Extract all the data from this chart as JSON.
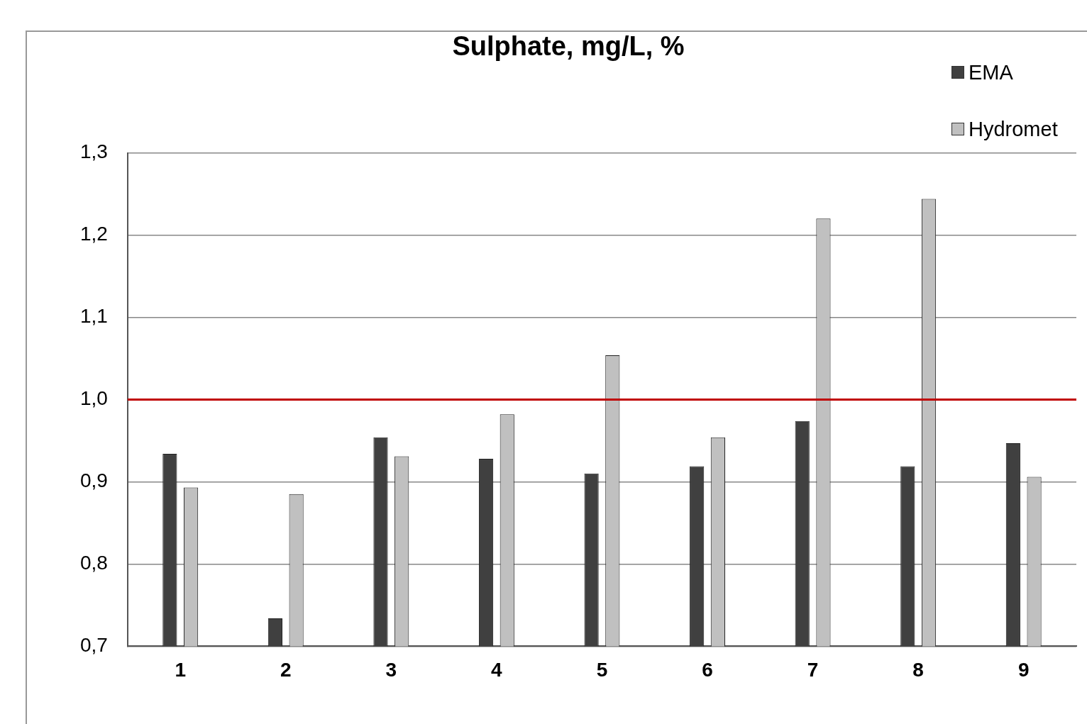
{
  "chart_data": {
    "type": "bar",
    "title": "Sulphate, mg/L, %",
    "categories": [
      "1",
      "2",
      "3",
      "4",
      "5",
      "6",
      "7",
      "8",
      "9"
    ],
    "series": [
      {
        "name": "EMA",
        "color": "#404040",
        "values": [
          0.934,
          0.734,
          0.954,
          0.928,
          0.91,
          0.919,
          0.974,
          0.919,
          0.947
        ]
      },
      {
        "name": "Hydromet",
        "color": "#c0c0c0",
        "values": [
          0.893,
          0.885,
          0.931,
          0.982,
          1.054,
          0.954,
          1.22,
          1.244,
          0.906
        ]
      }
    ],
    "ylim": [
      0.7,
      1.3
    ],
    "yticks": [
      {
        "value": 0.7,
        "label": "0,7"
      },
      {
        "value": 0.8,
        "label": "0,8"
      },
      {
        "value": 0.9,
        "label": "0,9"
      },
      {
        "value": 1.0,
        "label": "1,0"
      },
      {
        "value": 1.1,
        "label": "1,1"
      },
      {
        "value": 1.2,
        "label": "1,2"
      },
      {
        "value": 1.3,
        "label": "1,3"
      }
    ],
    "ref_lines": [
      {
        "axis": "y",
        "value": 1.0,
        "color": "#c00000"
      }
    ],
    "grid": "y",
    "legend": "top right"
  }
}
